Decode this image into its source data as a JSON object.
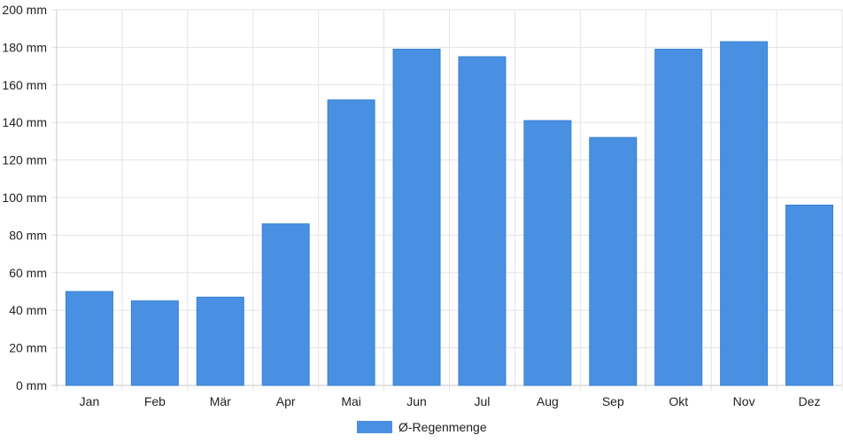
{
  "chart_data": {
    "type": "bar",
    "categories": [
      "Jan",
      "Feb",
      "Mär",
      "Apr",
      "Mai",
      "Jun",
      "Jul",
      "Aug",
      "Sep",
      "Okt",
      "Nov",
      "Dez"
    ],
    "series": [
      {
        "name": "Ø-Regenmenge",
        "color": "#4a90e2",
        "values": [
          50,
          45,
          47,
          86,
          152,
          179,
          175,
          141,
          132,
          179,
          183,
          96
        ]
      }
    ],
    "yticks": [
      "0 mm",
      "20 mm",
      "40 mm",
      "60 mm",
      "80 mm",
      "100 mm",
      "120 mm",
      "140 mm",
      "160 mm",
      "180 mm",
      "200 mm"
    ],
    "ylim": [
      0,
      200
    ],
    "yunit": "mm",
    "grid": true,
    "legend_position": "bottom"
  }
}
